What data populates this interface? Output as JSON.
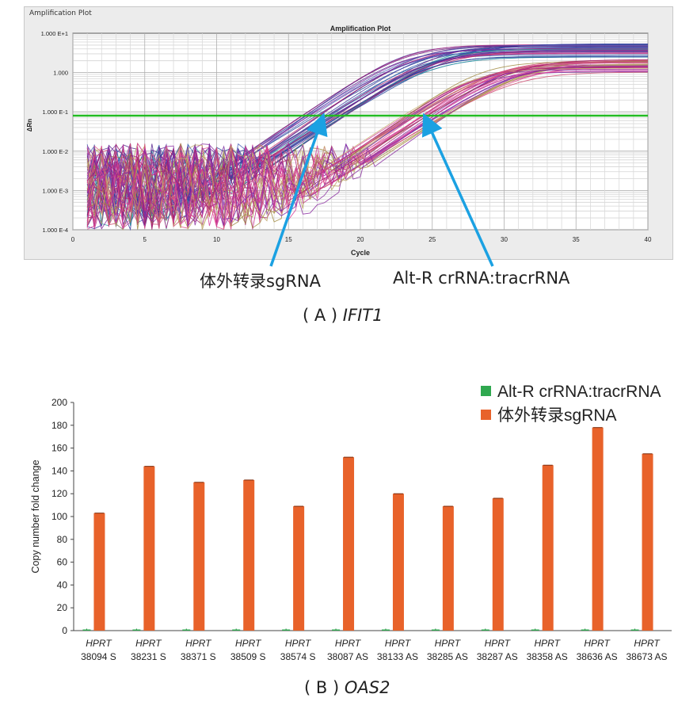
{
  "panel_a": {
    "window_title": "Amplification Plot",
    "caption_prefix": "( A )",
    "caption_gene": "IFIT1",
    "arrow_labels": {
      "sgrna": "体外转录sgRNA",
      "altr": "Alt-R crRNA:tracrRNA"
    }
  },
  "panel_b": {
    "caption_prefix": "( B )",
    "caption_gene": "OAS2"
  },
  "colors": {
    "threshold": "#22bb22",
    "bar_orange": "#e8622a",
    "bar_green": "#2fa84f",
    "arrow": "#1ba1e2",
    "caption_fade": "#f4f4f4"
  },
  "chart_data": [
    {
      "type": "line",
      "title": "Amplification Plot",
      "xlabel": "Cycle",
      "ylabel": "ΔRn",
      "xlim": [
        0,
        40
      ],
      "x_ticks": [
        0,
        5,
        10,
        15,
        20,
        25,
        30,
        35,
        40
      ],
      "y_scale": "log",
      "ylim": [
        0.0001,
        10
      ],
      "y_tick_values": [
        10,
        1,
        0.1,
        0.01,
        0.001,
        0.0001
      ],
      "y_tick_labels": [
        "1.000 E+1",
        "1.000",
        "1.000 E-1",
        "1.000 E-2",
        "1.000 E-3",
        "1.000 E-4"
      ],
      "threshold": 0.08,
      "grid": true,
      "series": [
        {
          "name": "体外转录sgRNA",
          "ct_approx": 17.5,
          "plateau": 4.5
        },
        {
          "name": "Alt-R crRNA:tracrRNA",
          "ct_approx": 24.5,
          "plateau": 1.8
        }
      ]
    },
    {
      "type": "bar",
      "ylabel": "Copy number fold change",
      "xlabel": "",
      "ylim": [
        0,
        200
      ],
      "y_ticks": [
        0,
        20,
        40,
        60,
        80,
        100,
        120,
        140,
        160,
        180,
        200
      ],
      "legend_position": "top-right",
      "category_prefix": "HPRT",
      "categories": [
        "38094 S",
        "38231 S",
        "38371 S",
        "38509 S",
        "38574 S",
        "38087 AS",
        "38133 AS",
        "38285 AS",
        "38287 AS",
        "38358 AS",
        "38636 AS",
        "38673 AS"
      ],
      "series": [
        {
          "name": "Alt-R crRNA:tracrRNA",
          "values": [
            1,
            1,
            1,
            1,
            1,
            1,
            1,
            1,
            1,
            1,
            1,
            1
          ]
        },
        {
          "name": "体外转录sgRNA",
          "values": [
            103,
            144,
            130,
            132,
            109,
            152,
            120,
            109,
            116,
            145,
            178,
            155
          ]
        }
      ]
    }
  ]
}
